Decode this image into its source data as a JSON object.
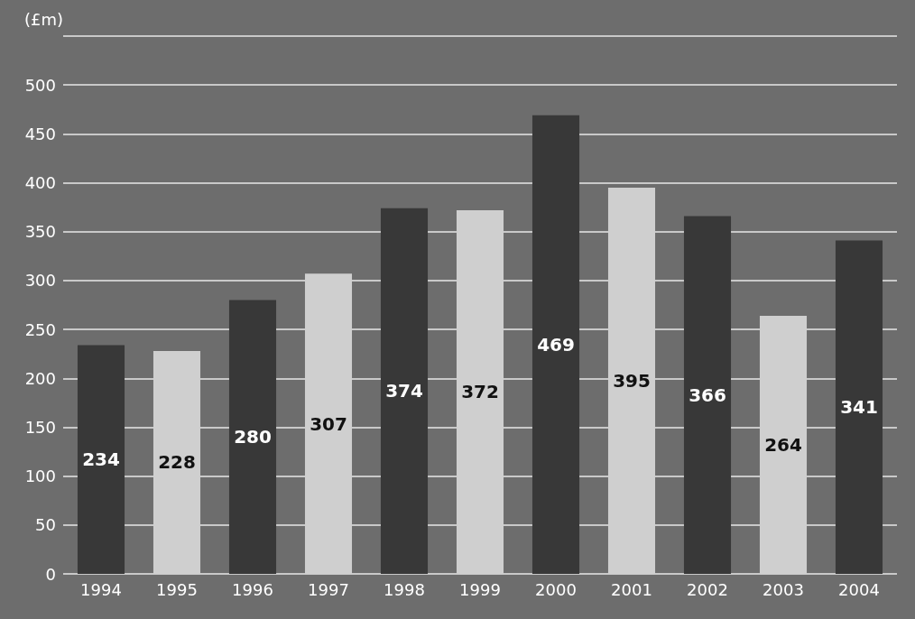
{
  "chart_data": {
    "type": "bar",
    "ylabel": "(£m)",
    "categories": [
      "1994",
      "1995",
      "1996",
      "1997",
      "1998",
      "1999",
      "2000",
      "2001",
      "2002",
      "2003",
      "2004"
    ],
    "values": [
      234,
      228,
      280,
      307,
      374,
      372,
      469,
      395,
      366,
      264,
      341
    ],
    "colors": [
      "#383838",
      "#cfcfcf",
      "#383838",
      "#cfcfcf",
      "#383838",
      "#cfcfcf",
      "#383838",
      "#cfcfcf",
      "#383838",
      "#cfcfcf",
      "#383838"
    ],
    "ylim": [
      0,
      550
    ],
    "yticks": [
      0,
      50,
      100,
      150,
      200,
      250,
      300,
      350,
      400,
      450,
      500,
      {
        "value": 550,
        "label": null
      }
    ],
    "grid": "y",
    "data_labels": true
  }
}
